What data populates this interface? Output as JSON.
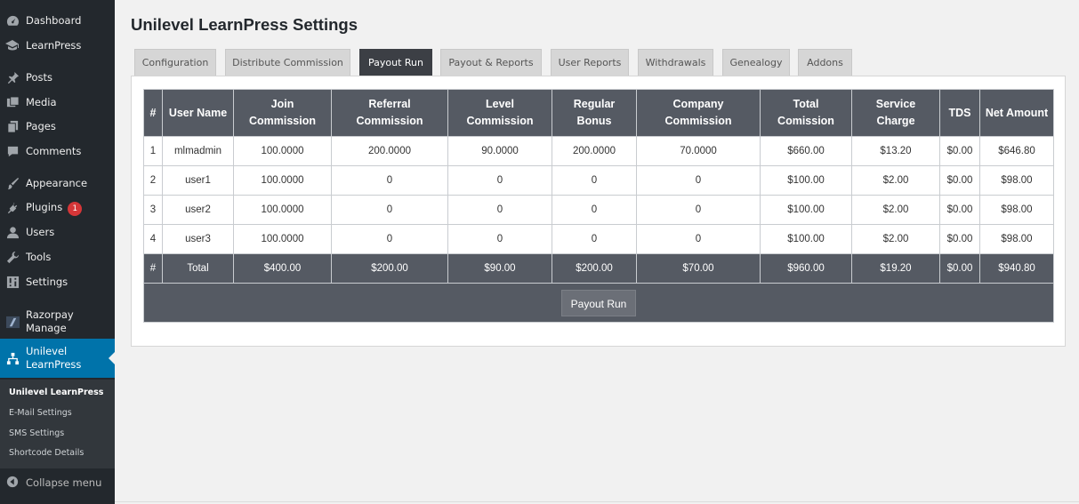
{
  "sidebar": {
    "items": [
      {
        "label": "Dashboard",
        "icon": "dashboard-icon"
      },
      {
        "label": "LearnPress",
        "icon": "graduation-cap-icon"
      },
      {
        "label": "Posts",
        "icon": "pin-icon"
      },
      {
        "label": "Media",
        "icon": "media-icon"
      },
      {
        "label": "Pages",
        "icon": "pages-icon"
      },
      {
        "label": "Comments",
        "icon": "comments-icon"
      },
      {
        "label": "Appearance",
        "icon": "brush-icon"
      },
      {
        "label": "Plugins",
        "icon": "plugin-icon",
        "badge": "1"
      },
      {
        "label": "Users",
        "icon": "user-icon"
      },
      {
        "label": "Tools",
        "icon": "wrench-icon"
      },
      {
        "label": "Settings",
        "icon": "settings-icon"
      },
      {
        "label": "Razorpay Manage",
        "icon": "razorpay-icon"
      },
      {
        "label": "Unilevel LearnPress",
        "icon": "network-icon"
      }
    ],
    "submenu": [
      "Unilevel LearnPress",
      "E-Mail Settings",
      "SMS Settings",
      "Shortcode Details"
    ],
    "collapse_label": "Collapse menu"
  },
  "page": {
    "title": "Unilevel LearnPress Settings",
    "tabs": [
      "Configuration",
      "Distribute Commission",
      "Payout Run",
      "Payout & Reports",
      "User Reports",
      "Withdrawals",
      "Genealogy",
      "Addons"
    ],
    "active_tab": "Payout Run"
  },
  "table": {
    "headers": [
      "#",
      "User Name",
      "Join Commission",
      "Referral Commission",
      "Level Commission",
      "Regular Bonus",
      "Company Commission",
      "Total Comission",
      "Service Charge",
      "TDS",
      "Net Amount"
    ],
    "rows": [
      [
        "1",
        "mlmadmin",
        "100.0000",
        "200.0000",
        "90.0000",
        "200.0000",
        "70.0000",
        "$660.00",
        "$13.20",
        "$0.00",
        "$646.80"
      ],
      [
        "2",
        "user1",
        "100.0000",
        "0",
        "0",
        "0",
        "0",
        "$100.00",
        "$2.00",
        "$0.00",
        "$98.00"
      ],
      [
        "3",
        "user2",
        "100.0000",
        "0",
        "0",
        "0",
        "0",
        "$100.00",
        "$2.00",
        "$0.00",
        "$98.00"
      ],
      [
        "4",
        "user3",
        "100.0000",
        "0",
        "0",
        "0",
        "0",
        "$100.00",
        "$2.00",
        "$0.00",
        "$98.00"
      ]
    ],
    "total_row": [
      "#",
      "Total",
      "$400.00",
      "$200.00",
      "$90.00",
      "$200.00",
      "$70.00",
      "$960.00",
      "$19.20",
      "$0.00",
      "$940.80"
    ],
    "button_label": "Payout Run"
  },
  "colors": {
    "sidebar_bg": "#23282d",
    "active_menu": "#0073aa",
    "table_header": "#555a63",
    "active_tab": "#3c3f45"
  }
}
